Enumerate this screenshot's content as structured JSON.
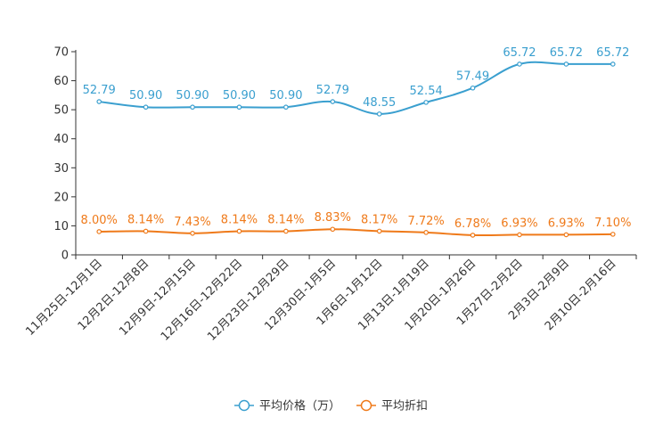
{
  "chart_data": {
    "type": "line",
    "title": "",
    "xlabel": "",
    "ylabel": "",
    "ylim": [
      0,
      70
    ],
    "yticks": [
      0,
      10,
      20,
      30,
      40,
      50,
      60,
      70
    ],
    "grid": false,
    "legend_position": "bottom-center",
    "categories": [
      "11月25日-12月1日",
      "12月2日-12月8日",
      "12月9日-12月15日",
      "12月16日-12月22日",
      "12月23日-12月29日",
      "12月30日-1月5日",
      "1月6日-1月12日",
      "1月13日-1月19日",
      "1月20日-1月26日",
      "1月27日-2月2日",
      "2月3日-2月9日",
      "2月10日-2月16日"
    ],
    "series": [
      {
        "name": "平均价格（万）",
        "color": "#3a9fcf",
        "values": [
          52.79,
          50.9,
          50.9,
          50.9,
          50.9,
          52.79,
          48.55,
          52.54,
          57.49,
          65.72,
          65.72,
          65.72
        ],
        "labels": [
          "52.79",
          "50.90",
          "50.90",
          "50.90",
          "50.90",
          "52.79",
          "48.55",
          "52.54",
          "57.49",
          "65.72",
          "65.72",
          "65.72"
        ]
      },
      {
        "name": "平均折扣",
        "color": "#ef7a1a",
        "values": [
          8.0,
          8.14,
          7.43,
          8.14,
          8.14,
          8.83,
          8.17,
          7.72,
          6.78,
          6.93,
          6.93,
          7.1
        ],
        "labels": [
          "8.00%",
          "8.14%",
          "7.43%",
          "8.14%",
          "8.14%",
          "8.83%",
          "8.17%",
          "7.72%",
          "6.78%",
          "6.93%",
          "6.93%",
          "7.10%"
        ]
      }
    ]
  }
}
